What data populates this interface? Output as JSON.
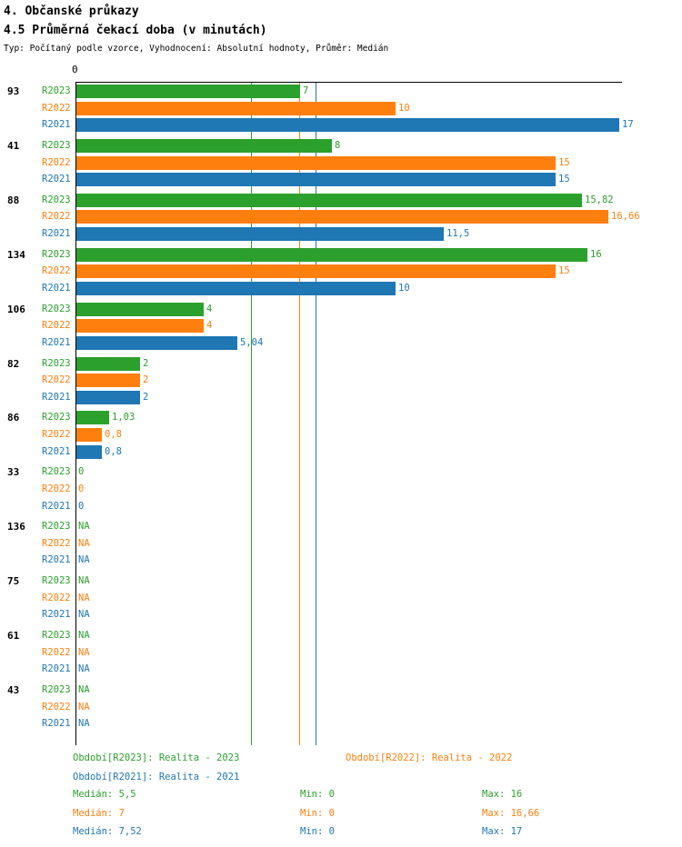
{
  "header": {
    "title": "4. Občanské průkazy",
    "subtitle": "4.5 Průměrná čekací doba (v minutách)",
    "meta": "Typ: Počítaný podle vzorce, Vyhodnocení: Absolutní hodnoty, Průměr: Medián"
  },
  "chart_data": {
    "type": "bar",
    "orientation": "horizontal",
    "title": "4. Občanské průkazy",
    "subtitle": "4.5 Průměrná čekací doba (v minutách)",
    "axis_origin_label": "0",
    "xlim": [
      0,
      17
    ],
    "grid": false,
    "legend_position": "bottom",
    "series_labels": [
      "R2023",
      "R2022",
      "R2021"
    ],
    "series_colors": [
      "#2ca02c",
      "#ff7f0e",
      "#1f77b4"
    ],
    "groups": [
      {
        "label": "93",
        "values": [
          7,
          10,
          17
        ],
        "display": [
          "7",
          "10",
          "17"
        ]
      },
      {
        "label": "41",
        "values": [
          8,
          15,
          15
        ],
        "display": [
          "8",
          "15",
          "15"
        ]
      },
      {
        "label": "88",
        "values": [
          15.82,
          16.66,
          11.5
        ],
        "display": [
          "15,82",
          "16,66",
          "11,5"
        ]
      },
      {
        "label": "134",
        "values": [
          16,
          15,
          10
        ],
        "display": [
          "16",
          "15",
          "10"
        ]
      },
      {
        "label": "106",
        "values": [
          4,
          4,
          5.04
        ],
        "display": [
          "4",
          "4",
          "5,04"
        ]
      },
      {
        "label": "82",
        "values": [
          2,
          2,
          2
        ],
        "display": [
          "2",
          "2",
          "2"
        ]
      },
      {
        "label": "86",
        "values": [
          1.03,
          0.8,
          0.8
        ],
        "display": [
          "1,03",
          "0,8",
          "0,8"
        ]
      },
      {
        "label": "33",
        "values": [
          0,
          0,
          0
        ],
        "display": [
          "0",
          "0",
          "0"
        ]
      },
      {
        "label": "136",
        "values": [
          null,
          null,
          null
        ],
        "display": [
          "NA",
          "NA",
          "NA"
        ]
      },
      {
        "label": "75",
        "values": [
          null,
          null,
          null
        ],
        "display": [
          "NA",
          "NA",
          "NA"
        ]
      },
      {
        "label": "61",
        "values": [
          null,
          null,
          null
        ],
        "display": [
          "NA",
          "NA",
          "NA"
        ]
      },
      {
        "label": "43",
        "values": [
          null,
          null,
          null
        ],
        "display": [
          "NA",
          "NA",
          "NA"
        ]
      }
    ],
    "median_lines": [
      {
        "series": "R2023",
        "value": 5.5,
        "color": "#2ca02c"
      },
      {
        "series": "R2022",
        "value": 7,
        "color": "#ff7f0e"
      },
      {
        "series": "R2021",
        "value": 7.52,
        "color": "#1f77b4"
      }
    ]
  },
  "legend": {
    "r2023": "Období[R2023]: Realita - 2023",
    "r2022": "Období[R2022]: Realita - 2022",
    "r2021": "Období[R2021]: Realita - 2021"
  },
  "stats": [
    {
      "series": "R2023",
      "median_label": "Medián: 5,5",
      "min_label": "Min: 0",
      "max_label": "Max: 16",
      "color": "#2ca02c"
    },
    {
      "series": "R2022",
      "median_label": "Medián: 7",
      "min_label": "Min: 0",
      "max_label": "Max: 16,66",
      "color": "#ff7f0e"
    },
    {
      "series": "R2021",
      "median_label": "Medián: 7,52",
      "min_label": "Min: 0",
      "max_label": "Max: 17",
      "color": "#1f77b4"
    }
  ]
}
